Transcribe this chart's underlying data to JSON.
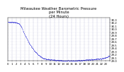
{
  "title": "Milwaukee Weather Barometric Pressure\nper Minute\n(24 Hours)",
  "title_fontsize": 3.8,
  "bg_color": "#ffffff",
  "dot_color": "#0000cc",
  "dot_size": 0.5,
  "grid_color": "#8888bb",
  "tick_fontsize": 2.8,
  "ylabel_fontsize": 2.8,
  "xlim": [
    0,
    1440
  ],
  "ylim": [
    29.0,
    30.35
  ],
  "x_ticks": [
    0,
    60,
    120,
    180,
    240,
    300,
    360,
    420,
    480,
    540,
    600,
    660,
    720,
    780,
    840,
    900,
    960,
    1020,
    1080,
    1140,
    1200,
    1260,
    1320,
    1380,
    1440
  ],
  "x_tick_labels": [
    "0",
    "1",
    "2",
    "3",
    "4",
    "5",
    "6",
    "7",
    "8",
    "9",
    "10",
    "11",
    "12",
    "13",
    "14",
    "15",
    "16",
    "17",
    "18",
    "19",
    "20",
    "21",
    "22",
    "23",
    ""
  ],
  "y_ticks": [
    29.0,
    29.1,
    29.2,
    29.3,
    29.4,
    29.5,
    29.6,
    29.7,
    29.8,
    29.9,
    30.0,
    30.1,
    30.2,
    30.3
  ],
  "n_points": 1440,
  "pressure_profile": [
    [
      0,
      30.22
    ],
    [
      60,
      30.22
    ],
    [
      120,
      30.2
    ],
    [
      150,
      30.18
    ],
    [
      180,
      30.1
    ],
    [
      240,
      29.8
    ],
    [
      300,
      29.55
    ],
    [
      360,
      29.35
    ],
    [
      420,
      29.2
    ],
    [
      480,
      29.1
    ],
    [
      540,
      29.05
    ],
    [
      600,
      29.03
    ],
    [
      660,
      29.02
    ],
    [
      720,
      29.01
    ],
    [
      780,
      29.0
    ],
    [
      840,
      29.0
    ],
    [
      900,
      29.0
    ],
    [
      960,
      29.0
    ],
    [
      1020,
      29.01
    ],
    [
      1080,
      29.02
    ],
    [
      1140,
      29.03
    ],
    [
      1200,
      29.04
    ],
    [
      1260,
      29.05
    ],
    [
      1320,
      29.06
    ],
    [
      1380,
      29.1
    ],
    [
      1440,
      29.15
    ]
  ]
}
